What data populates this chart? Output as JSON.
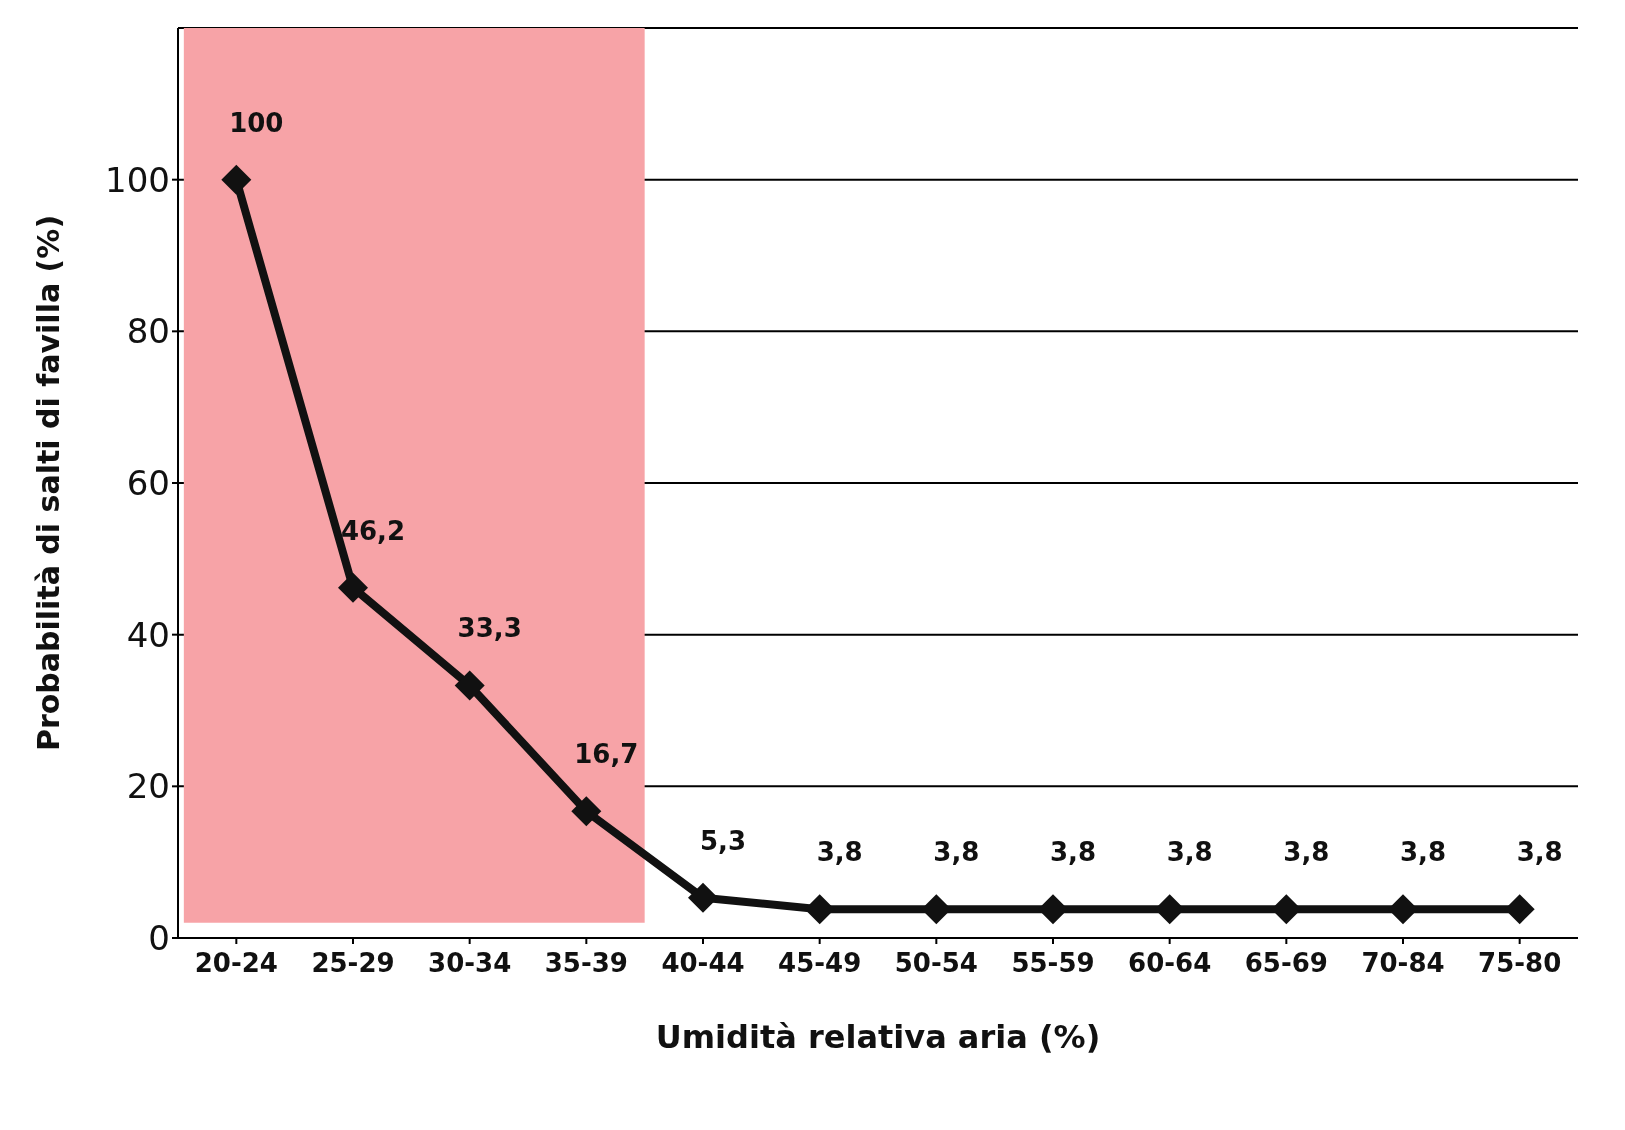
{
  "chart_data": {
    "type": "line",
    "xlabel": "Umidità relativa aria (%)",
    "ylabel": "Probabilità di salti di favilla (%)",
    "categories": [
      "20-24",
      "25-29",
      "30-34",
      "35-39",
      "40-44",
      "45-49",
      "50-54",
      "55-59",
      "60-64",
      "65-69",
      "70-84",
      "75-80"
    ],
    "series": [
      {
        "color": "#111111",
        "values": [
          100,
          46.2,
          33.3,
          16.7,
          5.3,
          3.8,
          3.8,
          3.8,
          3.8,
          3.8,
          3.8,
          3.8
        ]
      }
    ],
    "value_labels": [
      "100",
      "46,2",
      "33,3",
      "16,7",
      "5,3",
      "3,8",
      "3,8",
      "3,8",
      "3,8",
      "3,8",
      "3,8",
      "3,8"
    ],
    "ylim": [
      0,
      120
    ],
    "yticks": [
      0,
      20,
      40,
      60,
      80,
      100
    ],
    "grid": "y",
    "marker": "diamond",
    "line_style": "solid",
    "legend": false,
    "bands": [
      {
        "axis": "x",
        "from": "20-24",
        "to": "35-39",
        "color": "#f7a3a7"
      }
    ]
  }
}
